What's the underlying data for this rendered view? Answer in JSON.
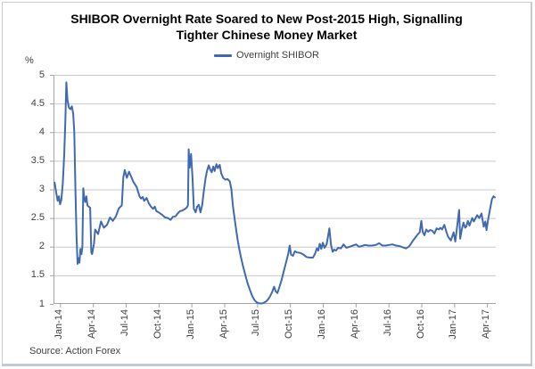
{
  "frame": {
    "source_note": "Source: Action Forex"
  },
  "chart_data": {
    "type": "line",
    "title": "SHIBOR Overnight Rate Soared to New Post-2015 High, Signalling Tighter Chinese Money Market",
    "title_lines": [
      "SHIBOR Overnight Rate Soared to New Post-2015 High, Signalling",
      "Tighter Chinese Money Market"
    ],
    "y_unit_label": "%",
    "legend": {
      "label": "Overnight SHIBOR",
      "position": "top-center"
    },
    "xlabel": "",
    "ylabel": "%",
    "x_tick_labels": [
      "Jan-14",
      "Apr-14",
      "Jul-14",
      "Oct-14",
      "Jan-15",
      "Apr-15",
      "Jul-15",
      "Oct-15",
      "Jan-16",
      "Apr-16",
      "Jul-16",
      "Oct-16",
      "Jan-17",
      "Apr-17"
    ],
    "x_ticks_months_since_jan2014": [
      0,
      3,
      6,
      9,
      12,
      15,
      18,
      21,
      24,
      27,
      30,
      33,
      36,
      39
    ],
    "x_range_months": [
      -0.6,
      39.8
    ],
    "ylim": [
      1,
      5
    ],
    "y_ticks": [
      5,
      4.5,
      4,
      3.5,
      3,
      2.5,
      2,
      1.5,
      1
    ],
    "grid": "horizontal",
    "colors": {
      "line": "#4069b0",
      "grid": "#c8c8c8",
      "axis": "#a3a3a3",
      "tick_text": "#3f3f3f",
      "title_text": "#000000"
    },
    "series": [
      {
        "name": "Overnight SHIBOR",
        "points": [
          [
            -0.5,
            3.12
          ],
          [
            -0.35,
            2.94
          ],
          [
            -0.22,
            2.8
          ],
          [
            -0.1,
            2.88
          ],
          [
            0.0,
            2.74
          ],
          [
            0.12,
            2.82
          ],
          [
            0.25,
            3.1
          ],
          [
            0.38,
            3.6
          ],
          [
            0.48,
            4.2
          ],
          [
            0.57,
            4.87
          ],
          [
            0.68,
            4.56
          ],
          [
            0.8,
            4.43
          ],
          [
            0.95,
            4.4
          ],
          [
            1.08,
            4.45
          ],
          [
            1.2,
            4.32
          ],
          [
            1.3,
            4.0
          ],
          [
            1.4,
            3.0
          ],
          [
            1.5,
            2.2
          ],
          [
            1.6,
            1.7
          ],
          [
            1.68,
            1.8
          ],
          [
            1.77,
            1.72
          ],
          [
            1.86,
            1.96
          ],
          [
            1.96,
            1.87
          ],
          [
            2.04,
            2.0
          ],
          [
            2.12,
            3.02
          ],
          [
            2.2,
            2.86
          ],
          [
            2.3,
            2.78
          ],
          [
            2.4,
            2.88
          ],
          [
            2.5,
            2.72
          ],
          [
            2.62,
            2.7
          ],
          [
            2.75,
            2.68
          ],
          [
            2.85,
            1.9
          ],
          [
            2.93,
            1.87
          ],
          [
            3.1,
            2.05
          ],
          [
            3.2,
            2.3
          ],
          [
            3.47,
            2.22
          ],
          [
            3.74,
            2.44
          ],
          [
            4.0,
            2.33
          ],
          [
            4.29,
            2.38
          ],
          [
            4.56,
            2.51
          ],
          [
            4.82,
            2.45
          ],
          [
            5.1,
            2.53
          ],
          [
            5.37,
            2.67
          ],
          [
            5.64,
            2.72
          ],
          [
            5.78,
            3.21
          ],
          [
            5.91,
            3.34
          ],
          [
            6.1,
            3.2
          ],
          [
            6.3,
            3.31
          ],
          [
            6.5,
            3.22
          ],
          [
            6.7,
            3.13
          ],
          [
            7.0,
            3.04
          ],
          [
            7.25,
            2.88
          ],
          [
            7.4,
            2.84
          ],
          [
            7.55,
            2.87
          ],
          [
            7.68,
            2.8
          ],
          [
            7.9,
            2.85
          ],
          [
            8.1,
            2.76
          ],
          [
            8.3,
            2.7
          ],
          [
            8.5,
            2.66
          ],
          [
            8.65,
            2.7
          ],
          [
            8.8,
            2.62
          ],
          [
            9.0,
            2.6
          ],
          [
            9.3,
            2.56
          ],
          [
            9.6,
            2.51
          ],
          [
            9.85,
            2.5
          ],
          [
            10.1,
            2.47
          ],
          [
            10.3,
            2.52
          ],
          [
            10.55,
            2.53
          ],
          [
            10.75,
            2.58
          ],
          [
            10.95,
            2.62
          ],
          [
            11.15,
            2.63
          ],
          [
            11.35,
            2.65
          ],
          [
            11.55,
            2.68
          ],
          [
            11.68,
            2.72
          ],
          [
            11.75,
            3.7
          ],
          [
            11.84,
            3.38
          ],
          [
            11.97,
            3.62
          ],
          [
            12.1,
            3.2
          ],
          [
            12.22,
            2.66
          ],
          [
            12.38,
            2.6
          ],
          [
            12.52,
            2.7
          ],
          [
            12.68,
            2.73
          ],
          [
            12.82,
            2.6
          ],
          [
            12.98,
            2.72
          ],
          [
            13.12,
            2.95
          ],
          [
            13.28,
            3.18
          ],
          [
            13.42,
            3.32
          ],
          [
            13.58,
            3.42
          ],
          [
            13.7,
            3.35
          ],
          [
            13.85,
            3.3
          ],
          [
            14.0,
            3.4
          ],
          [
            14.12,
            3.32
          ],
          [
            14.28,
            3.44
          ],
          [
            14.42,
            3.37
          ],
          [
            14.58,
            3.43
          ],
          [
            14.72,
            3.28
          ],
          [
            14.9,
            3.2
          ],
          [
            15.1,
            3.17
          ],
          [
            15.3,
            3.18
          ],
          [
            15.5,
            3.14
          ],
          [
            15.65,
            3.0
          ],
          [
            15.8,
            2.7
          ],
          [
            15.95,
            2.48
          ],
          [
            16.1,
            2.28
          ],
          [
            16.25,
            2.08
          ],
          [
            16.4,
            1.93
          ],
          [
            16.55,
            1.79
          ],
          [
            16.7,
            1.67
          ],
          [
            16.85,
            1.56
          ],
          [
            17.0,
            1.45
          ],
          [
            17.15,
            1.35
          ],
          [
            17.35,
            1.24
          ],
          [
            17.55,
            1.14
          ],
          [
            17.75,
            1.07
          ],
          [
            17.95,
            1.03
          ],
          [
            18.2,
            1.01
          ],
          [
            18.5,
            1.01
          ],
          [
            18.8,
            1.04
          ],
          [
            19.0,
            1.08
          ],
          [
            19.2,
            1.14
          ],
          [
            19.4,
            1.22
          ],
          [
            19.55,
            1.3
          ],
          [
            19.7,
            1.22
          ],
          [
            19.85,
            1.19
          ],
          [
            20.05,
            1.3
          ],
          [
            20.25,
            1.43
          ],
          [
            20.45,
            1.58
          ],
          [
            20.65,
            1.73
          ],
          [
            20.85,
            1.88
          ],
          [
            20.98,
            2.02
          ],
          [
            21.1,
            1.86
          ],
          [
            21.28,
            1.84
          ],
          [
            21.45,
            1.92
          ],
          [
            21.65,
            1.9
          ],
          [
            21.95,
            1.89
          ],
          [
            22.25,
            1.86
          ],
          [
            22.5,
            1.82
          ],
          [
            22.8,
            1.81
          ],
          [
            23.1,
            1.81
          ],
          [
            23.3,
            1.88
          ],
          [
            23.45,
            1.97
          ],
          [
            23.58,
            1.93
          ],
          [
            23.72,
            2.05
          ],
          [
            23.86,
            1.96
          ],
          [
            24.0,
            2.07
          ],
          [
            24.15,
            1.98
          ],
          [
            24.35,
            2.04
          ],
          [
            24.6,
            2.32
          ],
          [
            24.75,
            2.03
          ],
          [
            24.9,
            1.91
          ],
          [
            25.05,
            1.95
          ],
          [
            25.2,
            1.93
          ],
          [
            25.4,
            1.98
          ],
          [
            25.65,
            1.97
          ],
          [
            25.9,
            2.04
          ],
          [
            26.15,
            1.98
          ],
          [
            26.45,
            2.0
          ],
          [
            26.75,
            2.02
          ],
          [
            27.05,
            2.04
          ],
          [
            27.3,
            2.0
          ],
          [
            27.55,
            2.01
          ],
          [
            27.85,
            2.03
          ],
          [
            28.15,
            2.02
          ],
          [
            28.5,
            2.02
          ],
          [
            28.85,
            2.03
          ],
          [
            29.15,
            2.06
          ],
          [
            29.45,
            2.02
          ],
          [
            29.75,
            2.02
          ],
          [
            30.05,
            2.03
          ],
          [
            30.35,
            2.04
          ],
          [
            30.7,
            2.02
          ],
          [
            31.0,
            2.01
          ],
          [
            31.3,
            1.99
          ],
          [
            31.6,
            1.97
          ],
          [
            31.85,
            2.0
          ],
          [
            32.05,
            2.05
          ],
          [
            32.25,
            2.11
          ],
          [
            32.45,
            2.16
          ],
          [
            32.65,
            2.21
          ],
          [
            32.85,
            2.25
          ],
          [
            33.0,
            2.45
          ],
          [
            33.12,
            2.26
          ],
          [
            33.28,
            2.2
          ],
          [
            33.45,
            2.3
          ],
          [
            33.62,
            2.26
          ],
          [
            33.8,
            2.29
          ],
          [
            34.0,
            2.28
          ],
          [
            34.2,
            2.23
          ],
          [
            34.4,
            2.32
          ],
          [
            34.6,
            2.3
          ],
          [
            34.75,
            2.33
          ],
          [
            34.9,
            2.3
          ],
          [
            35.1,
            2.38
          ],
          [
            35.3,
            2.25
          ],
          [
            35.45,
            2.17
          ],
          [
            35.7,
            2.11
          ],
          [
            35.95,
            2.25
          ],
          [
            36.1,
            2.09
          ],
          [
            36.45,
            2.64
          ],
          [
            36.55,
            2.14
          ],
          [
            36.7,
            2.3
          ],
          [
            36.85,
            2.42
          ],
          [
            37.0,
            2.33
          ],
          [
            37.1,
            2.35
          ],
          [
            37.25,
            2.45
          ],
          [
            37.4,
            2.37
          ],
          [
            37.65,
            2.5
          ],
          [
            37.8,
            2.44
          ],
          [
            38.1,
            2.55
          ],
          [
            38.3,
            2.5
          ],
          [
            38.5,
            2.58
          ],
          [
            38.7,
            2.35
          ],
          [
            38.85,
            2.44
          ],
          [
            38.95,
            2.29
          ],
          [
            39.1,
            2.47
          ],
          [
            39.3,
            2.68
          ],
          [
            39.45,
            2.83
          ],
          [
            39.6,
            2.88
          ],
          [
            39.72,
            2.86
          ]
        ]
      }
    ]
  }
}
